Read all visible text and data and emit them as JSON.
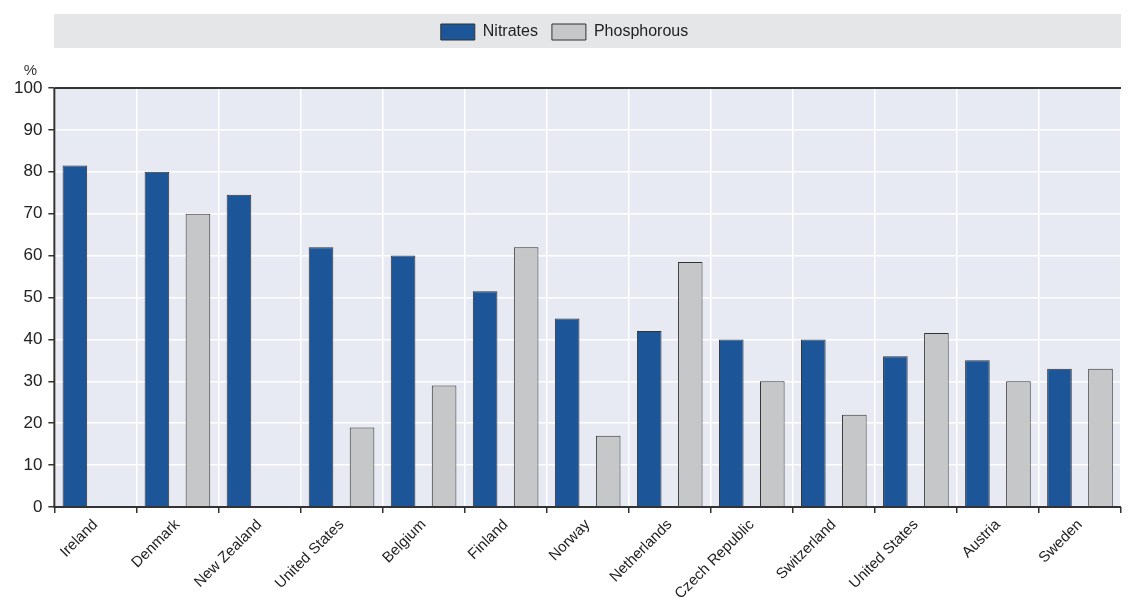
{
  "chart_data": {
    "type": "bar",
    "ylabel": "%",
    "categories": [
      "Ireland",
      "Denmark",
      "New Zealand",
      "United States",
      "Belgium",
      "Finland",
      "Norway",
      "Netherlands",
      "Czech Republic",
      "Switzerland",
      "United States",
      "Austria",
      "Sweden"
    ],
    "series": [
      {
        "name": "Nitrates",
        "color": "#1c5699",
        "values": [
          81.5,
          80,
          74.5,
          62,
          60,
          51.5,
          45,
          42,
          40,
          40,
          36,
          35,
          33
        ]
      },
      {
        "name": "Phosphorous",
        "color": "#c6c7c9",
        "values": [
          null,
          70,
          null,
          19,
          29,
          62,
          17,
          58.5,
          30,
          22,
          41.5,
          30,
          33
        ]
      }
    ],
    "ylim": [
      0,
      100
    ],
    "yticks": [
      0,
      10,
      20,
      30,
      40,
      50,
      60,
      70,
      80,
      90,
      100
    ],
    "grid": true,
    "legend": "top"
  }
}
